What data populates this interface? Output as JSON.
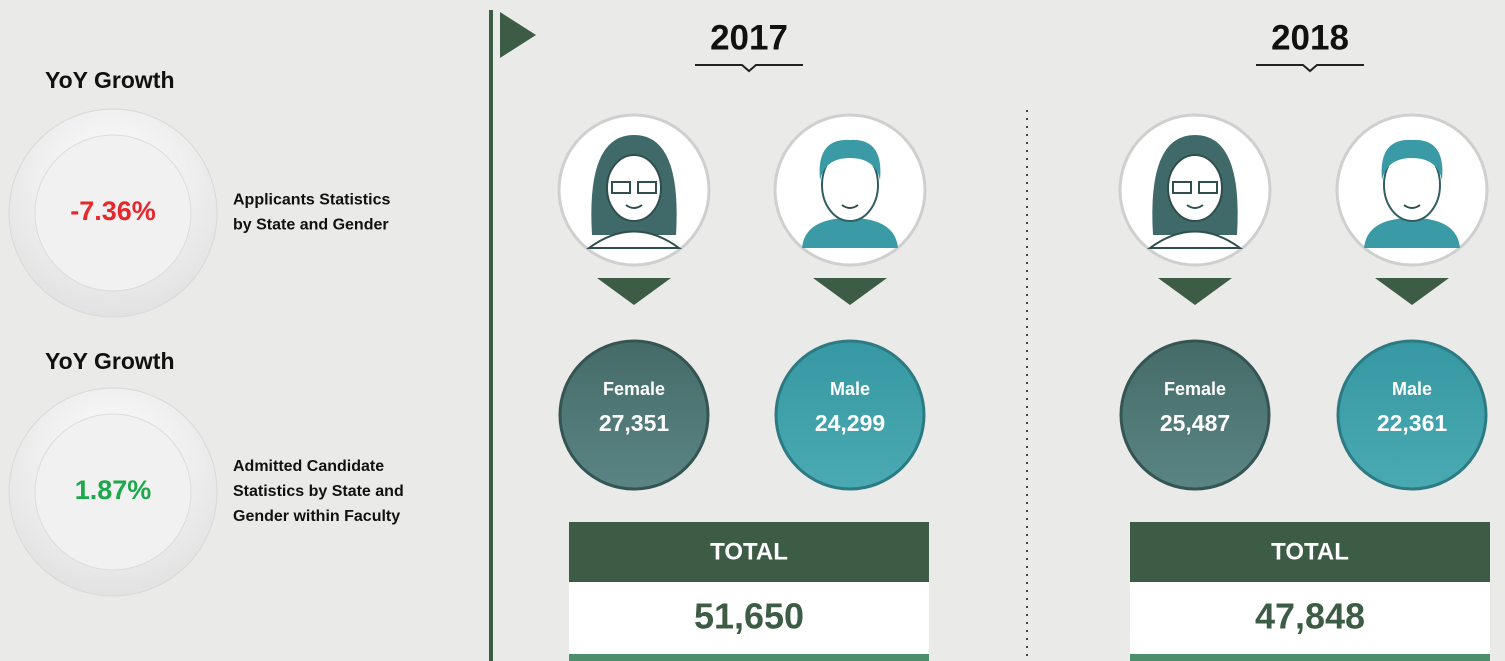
{
  "kpis": [
    {
      "title": "YoY Growth",
      "value": "-7.36%",
      "description": [
        "Applicants Statistics",
        "by State and Gender"
      ]
    },
    {
      "title": "YoY Growth",
      "value": "1.87%",
      "description": [
        "Admitted Candidate",
        "Statistics by State and",
        "Gender within Faculty"
      ]
    }
  ],
  "years": [
    {
      "year": "2017",
      "female_label": "Female",
      "female_value": "27,351",
      "male_label": "Male",
      "male_value": "24,299",
      "total_label": "TOTAL",
      "total_value": "51,650"
    },
    {
      "year": "2018",
      "female_label": "Female",
      "female_value": "25,487",
      "male_label": "Male",
      "male_value": "22,361",
      "total_label": "TOTAL",
      "total_value": "47,848"
    }
  ]
}
